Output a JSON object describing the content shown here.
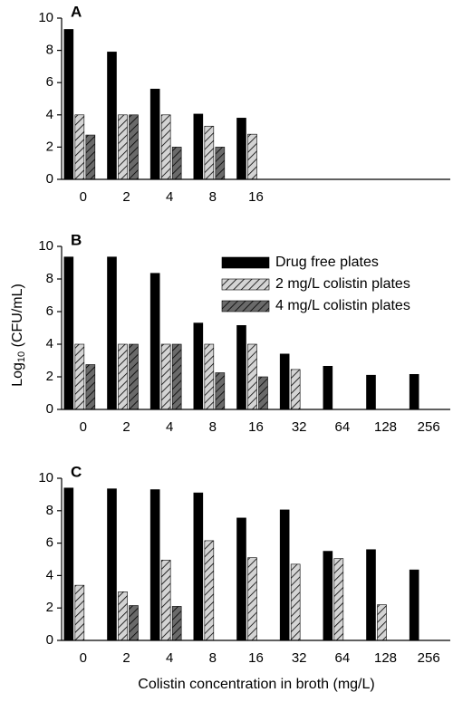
{
  "ylabel_parts": [
    "Log",
    "10",
    " (CFU/mL)"
  ],
  "xlabel": "Colistin concentration in broth (mg/L)",
  "chart_data": [
    {
      "type": "bar",
      "title": "A",
      "categories": [
        "0",
        "2",
        "4",
        "8",
        "16",
        null,
        null,
        null,
        null
      ],
      "series": [
        {
          "name": "Drug free plates",
          "color": "#000000",
          "hatched": false,
          "values": [
            9.3,
            7.9,
            5.6,
            4.05,
            3.8,
            null,
            null,
            null,
            null
          ]
        },
        {
          "name": "2 mg/L colistin plates",
          "color": "#d4d4d4",
          "hatched": true,
          "values": [
            4.0,
            4.0,
            4.0,
            3.3,
            2.8,
            null,
            null,
            null,
            null
          ]
        },
        {
          "name": "4 mg/L colistin plates",
          "color": "#6a6a6a",
          "hatched": true,
          "values": [
            2.75,
            4.0,
            2.0,
            2.0,
            null,
            null,
            null,
            null,
            null
          ]
        }
      ],
      "ylim": [
        0,
        10
      ],
      "yticks": [
        0,
        2,
        4,
        6,
        8,
        10
      ],
      "legend": false
    },
    {
      "type": "bar",
      "title": "B",
      "categories": [
        "0",
        "2",
        "4",
        "8",
        "16",
        "32",
        "64",
        "128",
        "256"
      ],
      "series": [
        {
          "name": "Drug free plates",
          "color": "#000000",
          "hatched": false,
          "values": [
            9.35,
            9.35,
            8.35,
            5.3,
            5.15,
            3.4,
            2.65,
            2.1,
            2.15
          ]
        },
        {
          "name": "2 mg/L colistin plates",
          "color": "#d4d4d4",
          "hatched": true,
          "values": [
            4.0,
            4.0,
            4.0,
            4.0,
            4.0,
            2.45,
            null,
            null,
            null
          ]
        },
        {
          "name": "4 mg/L colistin plates",
          "color": "#6a6a6a",
          "hatched": true,
          "values": [
            2.75,
            4.0,
            4.0,
            2.25,
            2.0,
            null,
            null,
            null,
            null
          ]
        }
      ],
      "ylim": [
        0,
        10
      ],
      "yticks": [
        0,
        2,
        4,
        6,
        8,
        10
      ],
      "legend": true
    },
    {
      "type": "bar",
      "title": "C",
      "categories": [
        "0",
        "2",
        "4",
        "8",
        "16",
        "32",
        "64",
        "128",
        "256"
      ],
      "series": [
        {
          "name": "Drug free plates",
          "color": "#000000",
          "hatched": false,
          "values": [
            9.4,
            9.35,
            9.3,
            9.1,
            7.55,
            8.05,
            5.5,
            5.6,
            4.35
          ]
        },
        {
          "name": "2 mg/L colistin plates",
          "color": "#d4d4d4",
          "hatched": true,
          "values": [
            3.4,
            3.0,
            4.95,
            6.15,
            5.1,
            4.7,
            5.05,
            2.2,
            null
          ]
        },
        {
          "name": "4 mg/L colistin plates",
          "color": "#6a6a6a",
          "hatched": true,
          "values": [
            null,
            2.15,
            2.1,
            null,
            null,
            null,
            null,
            null,
            null
          ]
        }
      ],
      "ylim": [
        0,
        10
      ],
      "yticks": [
        0,
        2,
        4,
        6,
        8,
        10
      ],
      "legend": false
    }
  ]
}
